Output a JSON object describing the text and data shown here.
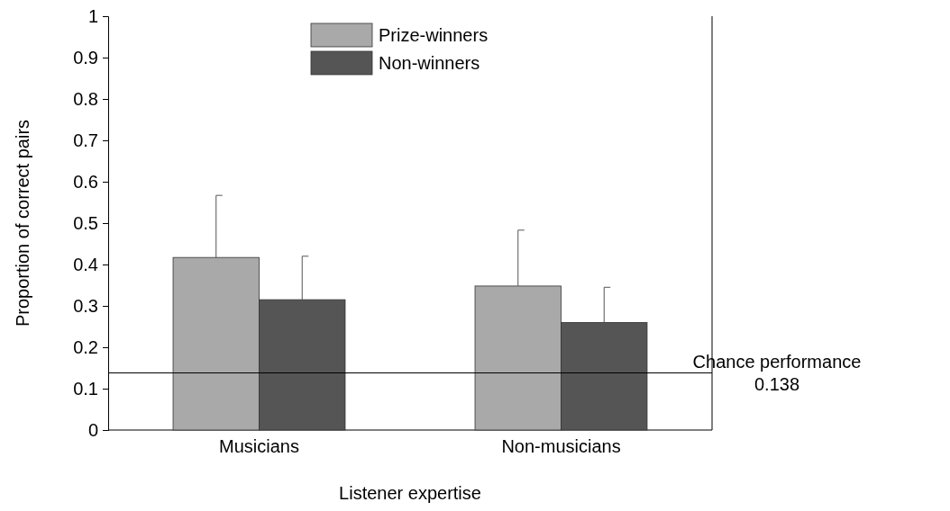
{
  "chart_data": {
    "type": "bar",
    "xlabel": "Listener expertise",
    "ylabel": "Proportion of correct pairs",
    "categories": [
      "Musicians",
      "Non-musicians"
    ],
    "series": [
      {
        "name": "Prize-winners",
        "color": "#a9a9a9",
        "values": [
          0.417,
          0.348
        ],
        "errors": [
          [
            0.417,
            0.567
          ],
          [
            0.348,
            0.483
          ]
        ]
      },
      {
        "name": "Non-winners",
        "color": "#555555",
        "values": [
          0.315,
          0.26
        ],
        "errors": [
          [
            0.315,
            0.42
          ],
          [
            0.26,
            0.345
          ]
        ]
      }
    ],
    "ylim": [
      0,
      1
    ],
    "yticks": [
      0,
      0.1,
      0.2,
      0.3,
      0.4,
      0.5,
      0.6,
      0.7,
      0.8,
      0.9,
      1
    ],
    "ref_lines": [
      {
        "axis": "y",
        "value": 0.138,
        "label": "Chance performance 0.138",
        "color": "#000000"
      }
    ],
    "legend": "top",
    "grid": false
  }
}
